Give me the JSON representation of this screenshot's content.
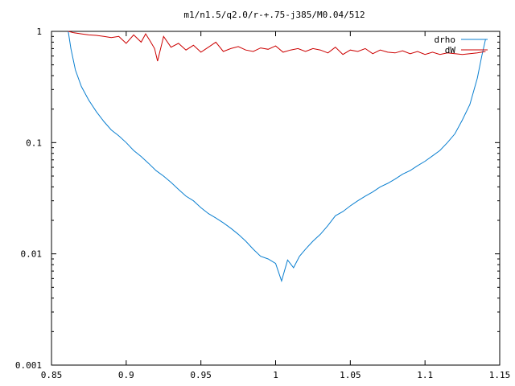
{
  "chart_data": {
    "type": "line",
    "title": "m1/n1.5/q2.0/r-+.75-j385/M0.04/512",
    "xlabel": "",
    "ylabel": "",
    "xlim": [
      0.85,
      1.15
    ],
    "ylim": [
      0.001,
      1
    ],
    "yscale": "log",
    "grid": false,
    "legend_position": "top-right",
    "x_ticks": [
      0.85,
      0.9,
      0.95,
      1,
      1.05,
      1.1,
      1.15
    ],
    "x_tick_labels": [
      "0.85",
      "0.9",
      "0.95",
      "1",
      "1.05",
      "1.1",
      "1.15"
    ],
    "y_ticks": [
      0.001,
      0.01,
      0.1,
      1
    ],
    "y_tick_labels": [
      "0.001",
      "0.01",
      "0.1",
      "1"
    ],
    "series": [
      {
        "name": "drho",
        "color": "#0a7fd0",
        "x": [
          0.8612,
          0.863,
          0.866,
          0.87,
          0.875,
          0.88,
          0.885,
          0.89,
          0.895,
          0.9,
          0.905,
          0.91,
          0.915,
          0.92,
          0.925,
          0.93,
          0.935,
          0.94,
          0.945,
          0.95,
          0.955,
          0.96,
          0.965,
          0.97,
          0.975,
          0.98,
          0.985,
          0.99,
          0.995,
          1.0,
          1.004,
          1.008,
          1.012,
          1.016,
          1.02,
          1.025,
          1.03,
          1.035,
          1.04,
          1.045,
          1.05,
          1.055,
          1.06,
          1.065,
          1.07,
          1.075,
          1.08,
          1.085,
          1.09,
          1.095,
          1.1,
          1.105,
          1.11,
          1.115,
          1.12,
          1.125,
          1.13,
          1.135,
          1.138,
          1.1405
        ],
        "values": [
          1.0,
          0.7,
          0.45,
          0.32,
          0.24,
          0.19,
          0.155,
          0.13,
          0.115,
          0.1,
          0.085,
          0.075,
          0.065,
          0.056,
          0.05,
          0.044,
          0.038,
          0.033,
          0.03,
          0.026,
          0.023,
          0.021,
          0.019,
          0.017,
          0.015,
          0.013,
          0.011,
          0.0095,
          0.009,
          0.0082,
          0.0057,
          0.0088,
          0.0075,
          0.0095,
          0.011,
          0.013,
          0.015,
          0.018,
          0.022,
          0.024,
          0.027,
          0.03,
          0.033,
          0.036,
          0.04,
          0.043,
          0.047,
          0.052,
          0.056,
          0.062,
          0.068,
          0.076,
          0.085,
          0.1,
          0.12,
          0.16,
          0.22,
          0.38,
          0.6,
          0.85
        ]
      },
      {
        "name": "dW",
        "color": "#cc0000",
        "x": [
          0.8612,
          0.865,
          0.87,
          0.875,
          0.88,
          0.885,
          0.89,
          0.895,
          0.9,
          0.905,
          0.91,
          0.913,
          0.916,
          0.919,
          0.921,
          0.925,
          0.93,
          0.935,
          0.94,
          0.945,
          0.95,
          0.955,
          0.96,
          0.965,
          0.97,
          0.975,
          0.98,
          0.985,
          0.99,
          0.995,
          1.0,
          1.005,
          1.01,
          1.015,
          1.02,
          1.025,
          1.03,
          1.035,
          1.04,
          1.045,
          1.05,
          1.055,
          1.06,
          1.065,
          1.07,
          1.075,
          1.08,
          1.085,
          1.09,
          1.095,
          1.1,
          1.105,
          1.11,
          1.115,
          1.12,
          1.125,
          1.13,
          1.135,
          1.1405
        ],
        "values": [
          1.0,
          0.97,
          0.95,
          0.93,
          0.92,
          0.9,
          0.88,
          0.9,
          0.78,
          0.93,
          0.8,
          0.95,
          0.82,
          0.7,
          0.54,
          0.9,
          0.72,
          0.78,
          0.68,
          0.75,
          0.65,
          0.72,
          0.8,
          0.66,
          0.7,
          0.73,
          0.68,
          0.66,
          0.71,
          0.69,
          0.74,
          0.65,
          0.68,
          0.7,
          0.66,
          0.7,
          0.68,
          0.64,
          0.72,
          0.62,
          0.68,
          0.66,
          0.7,
          0.63,
          0.68,
          0.65,
          0.64,
          0.67,
          0.63,
          0.66,
          0.62,
          0.65,
          0.62,
          0.64,
          0.63,
          0.62,
          0.63,
          0.64,
          0.66
        ]
      }
    ]
  }
}
